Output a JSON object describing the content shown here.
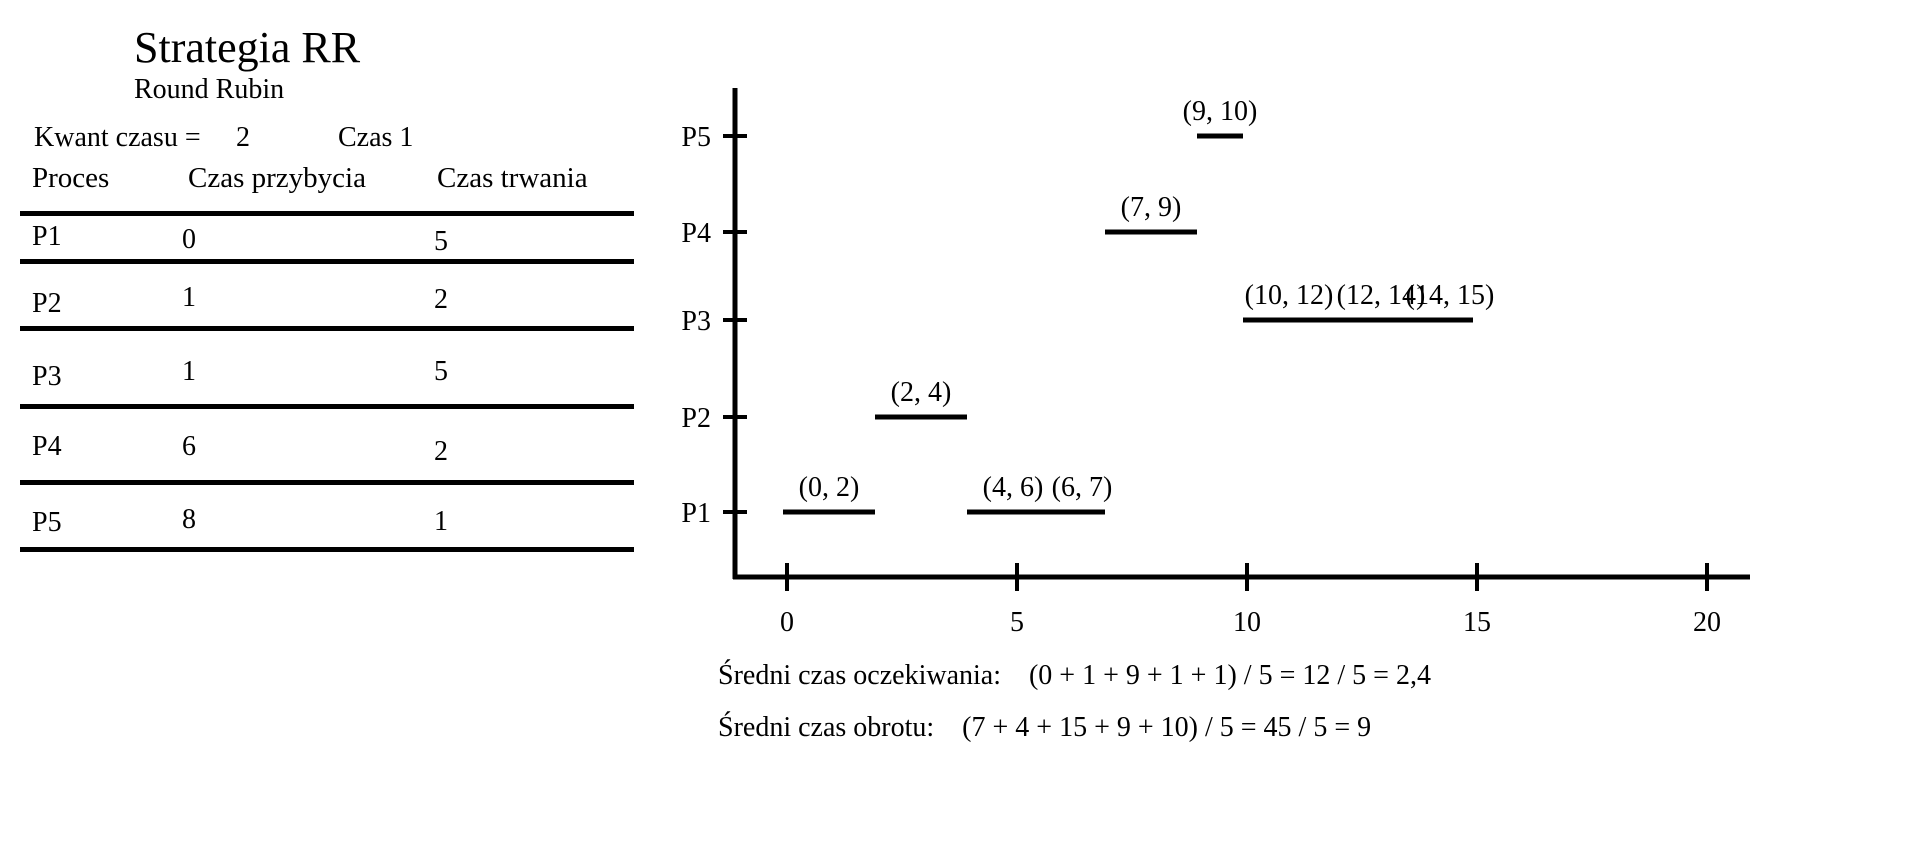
{
  "title": "Strategia RR",
  "subtitle": "Round Rubin",
  "quantum": {
    "label": "Kwant czasu =",
    "value": "2"
  },
  "time_label": "Czas 1",
  "table": {
    "headers": [
      "Proces",
      "Czas przybycia",
      "Czas trwania"
    ],
    "rows": [
      {
        "process": "P1",
        "arrival": "0",
        "burst": "5"
      },
      {
        "process": "P2",
        "arrival": "1",
        "burst": "2"
      },
      {
        "process": "P3",
        "arrival": "1",
        "burst": "5"
      },
      {
        "process": "P4",
        "arrival": "6",
        "burst": "2"
      },
      {
        "process": "P5",
        "arrival": "8",
        "burst": "1"
      }
    ]
  },
  "chart_data": {
    "type": "gantt",
    "categories": [
      "P1",
      "P2",
      "P3",
      "P4",
      "P5"
    ],
    "x_ticks": [
      0,
      5,
      10,
      15,
      20
    ],
    "xlim": [
      0,
      20
    ],
    "segments": [
      {
        "process": "P1",
        "start": 0,
        "end": 2,
        "label": "(0, 2)"
      },
      {
        "process": "P2",
        "start": 2,
        "end": 4,
        "label": "(2, 4)"
      },
      {
        "process": "P1",
        "start": 4,
        "end": 6,
        "label": "(4, 6)"
      },
      {
        "process": "P1",
        "start": 6,
        "end": 7,
        "label": "(6, 7)"
      },
      {
        "process": "P4",
        "start": 7,
        "end": 9,
        "label": "(7, 9)"
      },
      {
        "process": "P5",
        "start": 9,
        "end": 10,
        "label": "(9, 10)"
      },
      {
        "process": "P3",
        "start": 10,
        "end": 12,
        "label": "(10, 12)"
      },
      {
        "process": "P3",
        "start": 12,
        "end": 14,
        "label": "(12, 14)"
      },
      {
        "process": "P3",
        "start": 14,
        "end": 15,
        "label": "(14, 15)"
      }
    ]
  },
  "summary": {
    "avg_wait": {
      "label": "Średni czas oczekiwania:",
      "formula": "(0 + 1 + 9 + 1 + 1) / 5 = 12 / 5 = 2,4"
    },
    "avg_turnaround": {
      "label": "Średni czas obrotu:",
      "formula": "(7 + 4 + 15 + 9 + 10) / 5 = 45 / 5 = 9"
    }
  }
}
